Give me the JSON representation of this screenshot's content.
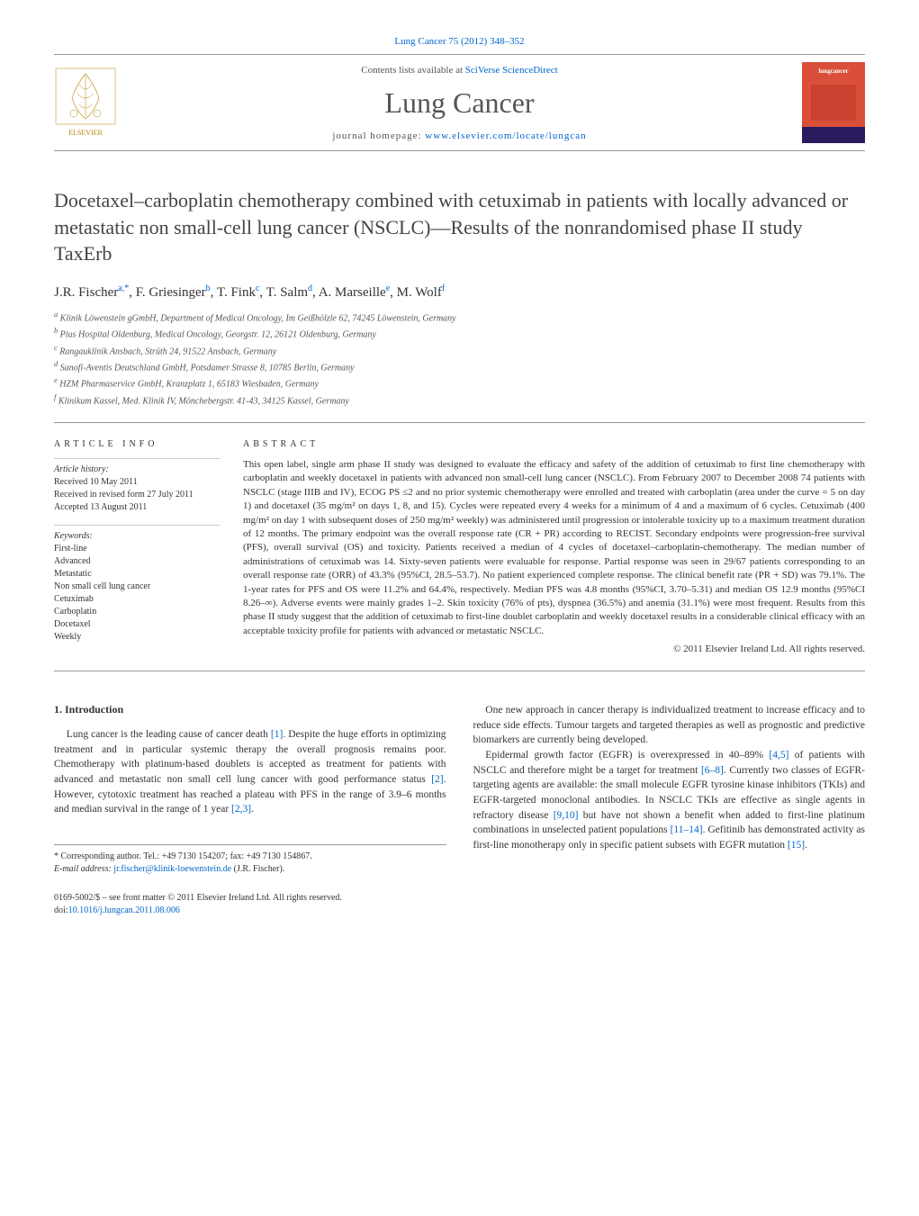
{
  "header": {
    "citation": "Lung Cancer 75 (2012) 348–352",
    "contents_prefix": "Contents lists available at ",
    "contents_link": "SciVerse ScienceDirect",
    "journal_name": "Lung Cancer",
    "homepage_prefix": "journal homepage: ",
    "homepage_link": "www.elsevier.com/locate/lungcan",
    "cover_text": "lungcancer"
  },
  "article": {
    "title": "Docetaxel–carboplatin chemotherapy combined with cetuximab in patients with locally advanced or metastatic non small-cell lung cancer (NSCLC)—Results of the nonrandomised phase II study TaxErb",
    "authors_html": "J.R. Fischer",
    "authors": [
      {
        "name": "J.R. Fischer",
        "sup": "a,*"
      },
      {
        "name": "F. Griesinger",
        "sup": "b"
      },
      {
        "name": "T. Fink",
        "sup": "c"
      },
      {
        "name": "T. Salm",
        "sup": "d"
      },
      {
        "name": "A. Marseille",
        "sup": "e"
      },
      {
        "name": "M. Wolf",
        "sup": "f"
      }
    ],
    "affiliations": [
      "a Klinik Löwenstein gGmbH, Department of Medical Oncology, Im Geißhölzle 62, 74245 Löwenstein, Germany",
      "b Pius Hospital Oldenburg, Medical Oncology, Georgstr. 12, 26121 Oldenburg, Germany",
      "c Rangauklinik Ansbach, Strüth 24, 91522 Ansbach, Germany",
      "d Sanofi-Aventis Deutschland GmbH, Potsdamer Strasse 8, 10785 Berlin, Germany",
      "e HZM Pharmaservice GmbH, Kranzplatz 1, 65183 Wiesbaden, Germany",
      "f Klinikum Kassel, Med. Klinik IV, Mönchebergstr. 41-43, 34125 Kassel, Germany"
    ]
  },
  "info": {
    "heading": "ARTICLE INFO",
    "history_heading": "Article history:",
    "history": [
      "Received 10 May 2011",
      "Received in revised form 27 July 2011",
      "Accepted 13 August 2011"
    ],
    "keywords_heading": "Keywords:",
    "keywords": [
      "First-line",
      "Advanced",
      "Metastatic",
      "Non small cell lung cancer",
      "Cetuximab",
      "Carboplatin",
      "Docetaxel",
      "Weekly"
    ]
  },
  "abstract": {
    "heading": "ABSTRACT",
    "text": "This open label, single arm phase II study was designed to evaluate the efficacy and safety of the addition of cetuximab to first line chemotherapy with carboplatin and weekly docetaxel in patients with advanced non small-cell lung cancer (NSCLC). From February 2007 to December 2008 74 patients with NSCLC (stage IIIB and IV), ECOG PS ≤2 and no prior systemic chemotherapy were enrolled and treated with carboplatin (area under the curve = 5 on day 1) and docetaxel (35 mg/m² on days 1, 8, and 15). Cycles were repeated every 4 weeks for a minimum of 4 and a maximum of 6 cycles. Cetuximab (400 mg/m² on day 1 with subsequent doses of 250 mg/m² weekly) was administered until progression or intolerable toxicity up to a maximum treatment duration of 12 months. The primary endpoint was the overall response rate (CR + PR) according to RECIST. Secondary endpoints were progression-free survival (PFS), overall survival (OS) and toxicity. Patients received a median of 4 cycles of docetaxel–carboplatin-chemotherapy. The median number of administrations of cetuximab was 14. Sixty-seven patients were evaluable for response. Partial response was seen in 29/67 patients corresponding to an overall response rate (ORR) of 43.3% (95%CI, 28.5–53.7). No patient experienced complete response. The clinical benefit rate (PR + SD) was 79.1%. The 1-year rates for PFS and OS were 11.2% and 64.4%, respectively. Median PFS was 4.8 months (95%CI, 3.70–5.31) and median OS 12.9 months (95%CI 8.26–∞). Adverse events were mainly grades 1–2. Skin toxicity (76% of pts), dyspnea (36.5%) and anemia (31.1%) were most frequent. Results from this phase II study suggest that the addition of cetuximab to first-line doublet carboplatin and weekly docetaxel results in a considerable clinical efficacy with an acceptable toxicity profile for patients with advanced or metastatic NSCLC.",
    "copyright": "© 2011 Elsevier Ireland Ltd. All rights reserved."
  },
  "body": {
    "section_heading": "1. Introduction",
    "col1_p1_pre": "Lung cancer is the leading cause of cancer death ",
    "col1_p1_ref1": "[1]",
    "col1_p1_mid": ". Despite the huge efforts in optimizing treatment and in particular systemic therapy the overall prognosis remains poor. Chemotherapy with platinum-based doublets is accepted as treatment for patients with advanced and metastatic non small cell lung cancer with good performance status ",
    "col1_p1_ref2": "[2]",
    "col1_p1_mid2": ". However, cytotoxic treatment has reached a plateau with PFS in the range of 3.9–6 months and median survival in the range of 1 year ",
    "col1_p1_ref3": "[2,3]",
    "col1_p1_end": ".",
    "col2_p1": "One new approach in cancer therapy is individualized treatment to increase efficacy and to reduce side effects. Tumour targets and targeted therapies as well as prognostic and predictive biomarkers are currently being developed.",
    "col2_p2_pre": "Epidermal growth factor (EGFR) is overexpressed in 40–89% ",
    "col2_p2_ref1": "[4,5]",
    "col2_p2_mid1": " of patients with NSCLC and therefore might be a target for treatment ",
    "col2_p2_ref2": "[6–8]",
    "col2_p2_mid2": ". Currently two classes of EGFR-targeting agents are available: the small molecule EGFR tyrosine kinase inhibitors (TKIs) and EGFR-targeted monoclonal antibodies. In NSCLC TKIs are effective as single agents in refractory disease ",
    "col2_p2_ref3": "[9,10]",
    "col2_p2_mid3": " but have not shown a benefit when added to first-line platinum combinations in unselected patient populations ",
    "col2_p2_ref4": "[11–14]",
    "col2_p2_mid4": ". Gefitinib has demonstrated activity as first-line monotherapy only in specific patient subsets with EGFR mutation ",
    "col2_p2_ref5": "[15]",
    "col2_p2_end": "."
  },
  "corr": {
    "line1": "* Corresponding author. Tel.: +49 7130 154207; fax: +49 7130 154867.",
    "email_label": "E-mail address: ",
    "email": "jr.fischer@klinik-loewenstein.de",
    "email_suffix": " (J.R. Fischer)."
  },
  "footer": {
    "line1": "0169-5002/$ – see front matter © 2011 Elsevier Ireland Ltd. All rights reserved.",
    "doi_label": "doi:",
    "doi": "10.1016/j.lungcan.2011.08.006"
  },
  "colors": {
    "link": "#0066cc",
    "cover_bg": "#d94f3a",
    "cover_band": "#2a1a5e",
    "text": "#333333",
    "rule": "#999999"
  }
}
